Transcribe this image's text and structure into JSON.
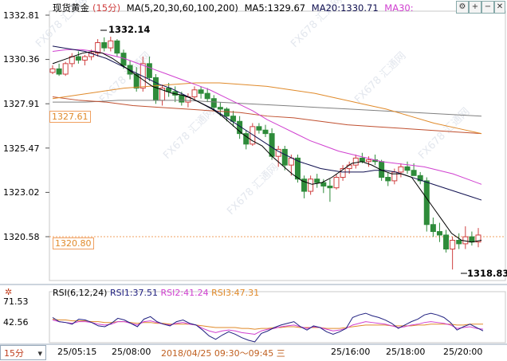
{
  "header": {
    "symbol": "现货黄金",
    "period_tag": "(15分)",
    "ma_indicator": "MA(5,20,30,60,100,200)",
    "ma5": "MA5:1329.67",
    "ma20": "MA20:1330.71",
    "ma30": "MA30:"
  },
  "controls": {
    "settings": "⚙",
    "zoom_in": "+",
    "zoom_out": "−",
    "close": "✕"
  },
  "price_axis": [
    "1332.81",
    "1330.36",
    "1327.91",
    "1325.47",
    "1323.02",
    "1320.58"
  ],
  "rsi_axis": [
    "71.53",
    "42.56"
  ],
  "annotations": {
    "high": "1332.14",
    "low": "1318.83",
    "ref_left": "1327.61",
    "ref_right": "1320.80"
  },
  "rsi_header": {
    "title": "RSI(6,12,24)",
    "rsi1": "RSI1:37.51",
    "rsi2": "RSI2:41.24",
    "rsi3": "RSI3:47.31"
  },
  "period_selector": {
    "label": "15分",
    "arrow": "▾"
  },
  "time_axis": [
    "25/05:15",
    "25/08:00",
    "2018/04/25 09:30～09:45 三",
    "25/16:00",
    "25/18:00",
    "25/20:00"
  ],
  "watermark": "FX678 汇通网",
  "colors": {
    "up": "#d04040",
    "down": "#2e8b3a",
    "ma5": "#000000",
    "ma20": "#101050",
    "ma30": "#d040d0",
    "ma60": "#e08a2a",
    "ma100": "#c05030",
    "ma200": "#808080",
    "rsi1": "#202080",
    "rsi2": "#d040d0",
    "rsi3": "#e08a2a"
  },
  "chart_data": {
    "type": "candlestick",
    "y_range": [
      1318.2,
      1333.6
    ],
    "candles": [
      [
        1330.1,
        1330.5,
        1330.0,
        1330.3
      ],
      [
        1330.3,
        1330.6,
        1329.9,
        1330.0
      ],
      [
        1330.0,
        1330.7,
        1329.9,
        1330.6
      ],
      [
        1330.6,
        1331.2,
        1330.4,
        1331.0
      ],
      [
        1331.0,
        1331.3,
        1330.6,
        1330.8
      ],
      [
        1330.8,
        1331.1,
        1330.5,
        1331.0
      ],
      [
        1331.0,
        1331.4,
        1330.8,
        1331.2
      ],
      [
        1331.2,
        1332.0,
        1331.0,
        1331.8
      ],
      [
        1331.8,
        1332.1,
        1331.3,
        1331.5
      ],
      [
        1331.5,
        1332.14,
        1331.3,
        1331.9
      ],
      [
        1331.9,
        1332.0,
        1331.0,
        1331.2
      ],
      [
        1331.2,
        1331.4,
        1330.3,
        1330.5
      ],
      [
        1330.5,
        1330.8,
        1329.7,
        1330.0
      ],
      [
        1330.0,
        1330.4,
        1329.0,
        1329.2
      ],
      [
        1329.2,
        1331.0,
        1329.0,
        1330.6
      ],
      [
        1330.6,
        1331.0,
        1329.6,
        1329.8
      ],
      [
        1329.8,
        1330.0,
        1328.3,
        1328.5
      ],
      [
        1328.5,
        1329.4,
        1328.2,
        1329.2
      ],
      [
        1329.2,
        1329.5,
        1328.7,
        1329.0
      ],
      [
        1329.0,
        1329.3,
        1328.4,
        1328.8
      ],
      [
        1328.8,
        1329.0,
        1328.2,
        1328.4
      ],
      [
        1328.4,
        1328.9,
        1328.1,
        1328.7
      ],
      [
        1328.7,
        1329.3,
        1328.5,
        1329.1
      ],
      [
        1329.1,
        1329.3,
        1328.6,
        1328.9
      ],
      [
        1328.9,
        1329.2,
        1328.4,
        1328.6
      ],
      [
        1328.6,
        1328.8,
        1327.9,
        1328.1
      ],
      [
        1328.1,
        1328.4,
        1327.6,
        1328.0
      ],
      [
        1328.0,
        1328.1,
        1327.3,
        1327.6
      ],
      [
        1327.6,
        1327.9,
        1327.0,
        1327.3
      ],
      [
        1327.3,
        1327.6,
        1326.3,
        1326.6
      ],
      [
        1326.6,
        1326.8,
        1325.7,
        1326.0
      ],
      [
        1326.0,
        1327.2,
        1325.9,
        1327.0
      ],
      [
        1327.0,
        1327.2,
        1326.6,
        1326.8
      ],
      [
        1326.8,
        1327.1,
        1326.4,
        1326.6
      ],
      [
        1326.6,
        1326.9,
        1325.1,
        1325.3
      ],
      [
        1325.3,
        1325.9,
        1324.7,
        1325.7
      ],
      [
        1325.7,
        1325.9,
        1324.5,
        1324.8
      ],
      [
        1324.8,
        1325.4,
        1324.2,
        1325.2
      ],
      [
        1325.2,
        1325.4,
        1323.8,
        1324.0
      ],
      [
        1324.0,
        1324.2,
        1322.9,
        1323.3
      ],
      [
        1323.3,
        1324.2,
        1323.1,
        1324.0
      ],
      [
        1324.0,
        1324.3,
        1323.5,
        1323.8
      ],
      [
        1323.8,
        1324.0,
        1323.2,
        1323.6
      ],
      [
        1323.6,
        1324.0,
        1322.7,
        1323.5
      ],
      [
        1323.5,
        1324.3,
        1323.4,
        1324.1
      ],
      [
        1324.1,
        1324.8,
        1323.9,
        1324.6
      ],
      [
        1324.6,
        1325.0,
        1324.3,
        1324.8
      ],
      [
        1324.8,
        1325.4,
        1324.6,
        1325.2
      ],
      [
        1325.2,
        1325.5,
        1324.9,
        1325.0
      ],
      [
        1325.0,
        1325.3,
        1324.7,
        1325.1
      ],
      [
        1325.1,
        1325.4,
        1324.8,
        1325.0
      ],
      [
        1325.0,
        1325.1,
        1323.9,
        1324.1
      ],
      [
        1324.1,
        1324.4,
        1323.6,
        1323.9
      ],
      [
        1323.9,
        1324.6,
        1323.7,
        1324.4
      ],
      [
        1324.4,
        1324.9,
        1324.1,
        1324.7
      ],
      [
        1324.7,
        1325.0,
        1324.3,
        1324.5
      ],
      [
        1324.5,
        1324.9,
        1324.2,
        1324.2
      ],
      [
        1324.2,
        1324.4,
        1323.7,
        1323.9
      ],
      [
        1323.9,
        1324.1,
        1321.0,
        1321.4
      ],
      [
        1321.4,
        1321.8,
        1320.7,
        1321.0
      ],
      [
        1321.0,
        1321.5,
        1320.4,
        1320.8
      ],
      [
        1320.8,
        1321.1,
        1319.8,
        1320.0
      ],
      [
        1320.0,
        1320.7,
        1318.83,
        1320.5
      ],
      [
        1320.5,
        1320.9,
        1320.0,
        1320.3
      ],
      [
        1320.3,
        1321.3,
        1320.0,
        1320.7
      ],
      [
        1320.7,
        1321.0,
        1320.2,
        1320.4
      ],
      [
        1320.4,
        1321.2,
        1320.1,
        1320.8
      ]
    ],
    "ma_lines": {
      "ma5": [
        1330.6,
        1330.8,
        1331.0,
        1331.2,
        1331.3,
        1331.2,
        1330.9,
        1330.5,
        1330.1,
        1329.7,
        1329.3,
        1329.1,
        1328.9,
        1328.8,
        1328.6,
        1328.3,
        1328.0,
        1327.6,
        1327.1,
        1326.6,
        1326.2,
        1325.9,
        1325.3,
        1324.8,
        1324.3,
        1323.9,
        1323.7,
        1323.8,
        1324.1,
        1324.5,
        1324.9,
        1325.0,
        1324.8,
        1324.5,
        1324.3,
        1324.3,
        1324.1,
        1323.3,
        1322.5,
        1321.7,
        1320.9,
        1320.5,
        1320.4,
        1320.5
      ],
      "ma20": [
        1331.6,
        1331.5,
        1331.4,
        1331.3,
        1331.1,
        1330.9,
        1330.6,
        1330.3,
        1330.0,
        1329.7,
        1329.4,
        1329.2,
        1328.9,
        1328.6,
        1328.3,
        1328.0,
        1327.6,
        1327.2,
        1326.8,
        1326.4,
        1326.0,
        1325.6,
        1325.3,
        1325.0,
        1324.8,
        1324.6,
        1324.5,
        1324.4,
        1324.4,
        1324.4,
        1324.5,
        1324.5,
        1324.4,
        1324.2,
        1324.0,
        1323.8,
        1323.6,
        1323.4,
        1323.2,
        1323.0,
        1322.8
      ],
      "ma30": [
        1331.3,
        1331.4,
        1331.4,
        1331.3,
        1331.1,
        1330.9,
        1330.6,
        1330.3,
        1330.0,
        1329.7,
        1329.4,
        1329.1,
        1328.7,
        1328.3,
        1327.9,
        1327.4,
        1327.0,
        1326.6,
        1326.2,
        1325.9,
        1325.6,
        1325.4,
        1325.2,
        1325.0,
        1324.9,
        1324.8,
        1324.7,
        1324.5,
        1324.3,
        1324.0,
        1323.7
      ],
      "ma60": [
        1328.6,
        1328.8,
        1329.0,
        1329.2,
        1329.3,
        1329.4,
        1329.5,
        1329.5,
        1329.4,
        1329.3,
        1329.1,
        1328.9,
        1328.6,
        1328.3,
        1328.0,
        1327.6,
        1327.2,
        1326.9,
        1326.6
      ],
      "ma100": [
        1328.7,
        1328.5,
        1328.4,
        1328.2,
        1328.1,
        1328.0,
        1327.9,
        1327.8,
        1327.6,
        1327.5,
        1327.3,
        1327.1,
        1327.0,
        1326.9,
        1326.8,
        1326.7,
        1326.6
      ],
      "ma200": [
        1328.4,
        1328.4,
        1328.5,
        1328.5,
        1328.5,
        1328.4,
        1328.3,
        1328.2,
        1328.1,
        1328.0,
        1327.9,
        1327.8,
        1327.7,
        1327.6
      ]
    },
    "rsi": {
      "y_range": [
        25,
        80
      ],
      "rsi1": [
        55,
        50,
        49,
        47,
        53,
        52,
        49,
        45,
        44,
        48,
        54,
        52,
        48,
        44,
        53,
        56,
        50,
        47,
        45,
        50,
        52,
        48,
        46,
        40,
        33,
        29,
        34,
        38,
        35,
        31,
        28,
        26,
        36,
        39,
        43,
        46,
        48,
        50,
        44,
        40,
        45,
        43,
        38,
        35,
        38,
        42,
        55,
        58,
        60,
        57,
        55,
        52,
        48,
        42,
        46,
        50,
        53,
        58,
        60,
        58,
        55,
        49,
        40,
        44,
        47,
        43,
        39
      ],
      "rsi2": [
        52,
        50,
        49,
        48,
        50,
        50,
        49,
        47,
        46,
        47,
        50,
        50,
        48,
        46,
        50,
        51,
        49,
        47,
        46,
        48,
        49,
        47,
        46,
        42,
        39,
        37,
        39,
        40,
        39,
        37,
        36,
        35,
        39,
        41,
        42,
        44,
        45,
        46,
        44,
        42,
        44,
        43,
        41,
        39,
        40,
        42,
        46,
        48,
        50,
        49,
        48,
        47,
        45,
        43,
        44,
        46,
        47,
        49,
        50,
        49,
        48,
        46,
        42,
        43,
        44,
        42,
        41
      ],
      "rsi3": [
        53,
        52,
        52,
        51,
        51,
        51,
        50,
        50,
        49,
        49,
        50,
        50,
        49,
        48,
        49,
        49,
        48,
        48,
        47,
        47,
        47,
        47,
        46,
        45,
        44,
        43,
        43,
        43,
        43,
        42,
        42,
        41,
        42,
        42,
        43,
        43,
        44,
        44,
        43,
        43,
        43,
        43,
        42,
        42,
        42,
        43,
        44,
        45,
        46,
        46,
        46,
        46,
        45,
        45,
        45,
        45,
        46,
        46,
        47,
        47,
        47,
        47,
        46,
        46,
        47,
        47,
        47
      ]
    }
  }
}
